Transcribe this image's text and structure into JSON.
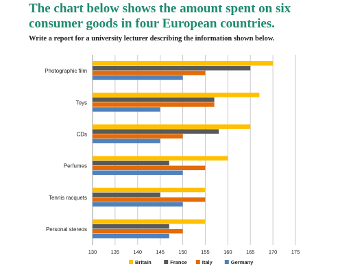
{
  "heading": "The chart below shows the amount spent on six consumer goods in four European countries.",
  "instruction": "Write a report for a university lecturer describing the information shown below.",
  "chart_data": {
    "type": "bar",
    "orientation": "horizontal",
    "categories": [
      "Photographic film",
      "Toys",
      "CDs",
      "Perfumes",
      "Tennis racquets",
      "Personal stereos"
    ],
    "series": [
      {
        "name": "Britain",
        "color": "#ffc000",
        "values": [
          170,
          167,
          165,
          160,
          155,
          155
        ]
      },
      {
        "name": "France",
        "color": "#595959",
        "values": [
          165,
          157,
          158,
          147,
          145,
          147
        ]
      },
      {
        "name": "Italy",
        "color": "#e36c09",
        "values": [
          155,
          157,
          150,
          155,
          155,
          150
        ]
      },
      {
        "name": "Germany",
        "color": "#4f81bd",
        "values": [
          150,
          145,
          145,
          150,
          150,
          147
        ]
      }
    ],
    "xlim": [
      130,
      175
    ],
    "xticks": [
      130,
      135,
      140,
      145,
      150,
      155,
      160,
      165,
      170,
      175
    ],
    "grid": true,
    "legend_position": "bottom"
  }
}
